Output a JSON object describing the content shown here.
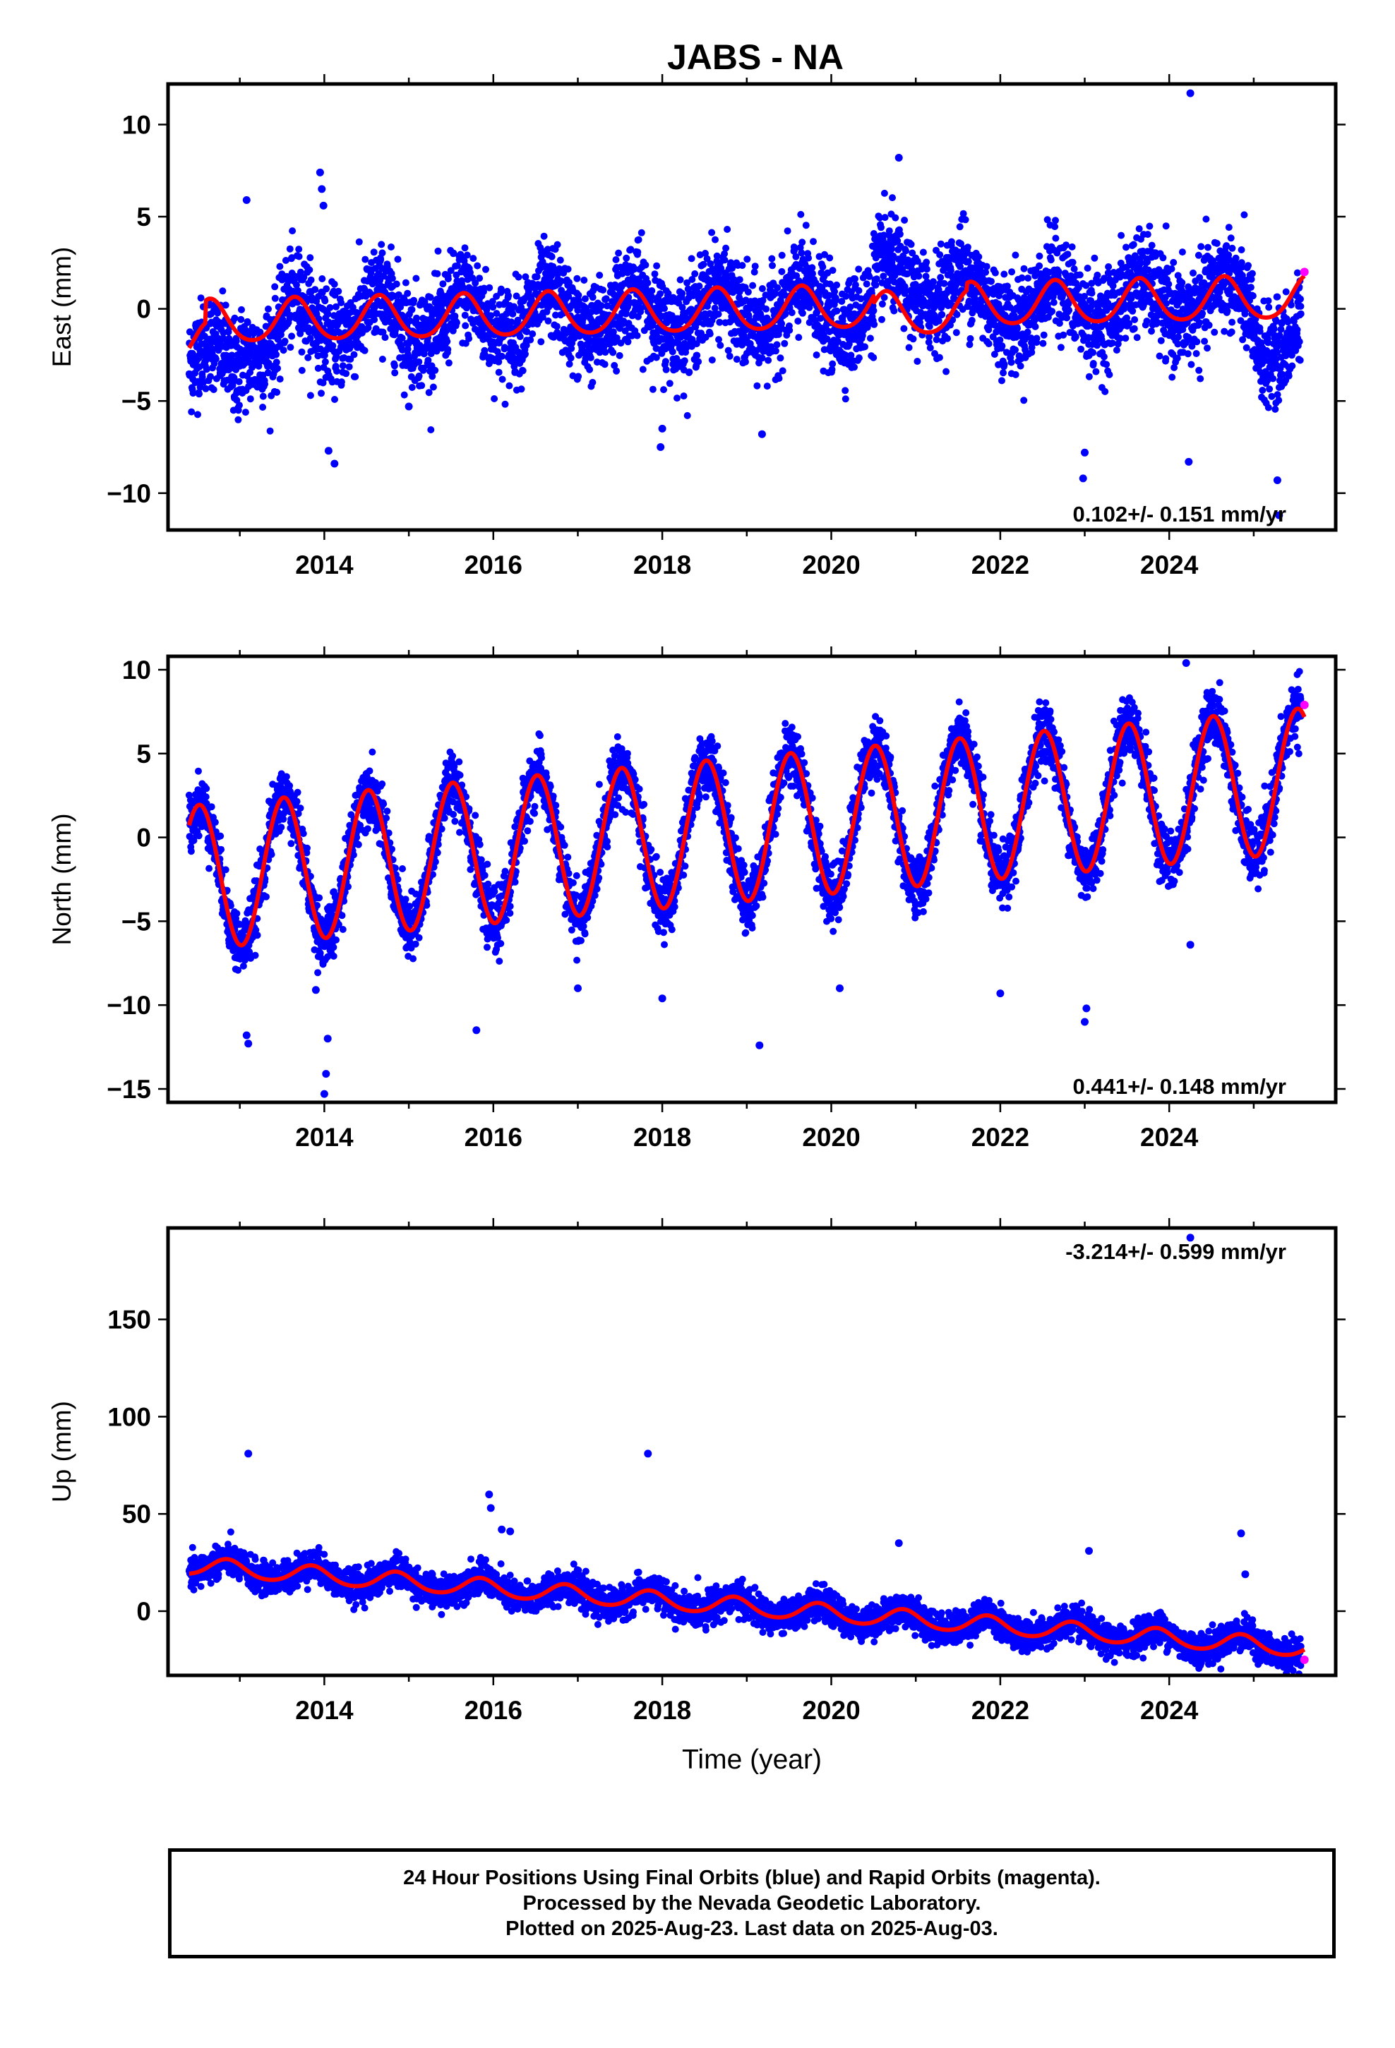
{
  "title": "JABS - NA",
  "footer": {
    "line1": "24 Hour Positions Using Final Orbits (blue) and Rapid Orbits (magenta).",
    "line2": "Processed by the Nevada Geodetic Laboratory.",
    "line3": "Plotted on 2025-Aug-23. Last data on 2025-Aug-03."
  },
  "colors": {
    "final_orbits": "#0000ff",
    "rapid_orbits": "#ff00ff",
    "model_fit": "#ff0000",
    "frame": "#000000"
  },
  "chart_data": [
    {
      "type": "scatter",
      "component": "east",
      "ylabel": "East (mm)",
      "xlabel": "",
      "xlim": [
        2012.15,
        2025.97
      ],
      "ylim": [
        -12.0,
        12.2
      ],
      "xticks": [
        2014,
        2016,
        2018,
        2020,
        2022,
        2024
      ],
      "yticks": [
        -10,
        -5,
        0,
        5,
        10
      ],
      "ytick_labels": [
        "−10",
        "−5",
        "0",
        "5",
        "10"
      ],
      "rate_text": "0.102+/- 0.151 mm/yr",
      "rate_position": "bottom-right",
      "series": [
        {
          "name": "Final Orbits",
          "kind": "daily-points",
          "color": "#0000ff",
          "x_range": [
            2012.4,
            2025.56
          ],
          "scatter_sd": 1.3,
          "model": {
            "ref_year": 2019.0,
            "offset": -0.1,
            "rate": 0.102,
            "annual_amp": 1.15,
            "annual_peak": 2019.65,
            "semiannual_amp": 0.15
          },
          "segment_offsets": [
            {
              "from": 2012.4,
              "to": 2013.0,
              "offset": -2.2
            },
            {
              "from": 2013.0,
              "to": 2013.5,
              "offset": -1.0
            },
            {
              "from": 2020.5,
              "to": 2021.6,
              "offset": 1.2
            },
            {
              "from": 2025.0,
              "to": 2025.56,
              "offset": -2.2
            }
          ],
          "outliers": [
            {
              "x": 2013.08,
              "y": 5.9
            },
            {
              "x": 2013.95,
              "y": 7.4
            },
            {
              "x": 2013.97,
              "y": 6.5
            },
            {
              "x": 2013.99,
              "y": 5.6
            },
            {
              "x": 2014.05,
              "y": -7.7
            },
            {
              "x": 2014.12,
              "y": -8.4
            },
            {
              "x": 2015.0,
              "y": -5.3
            },
            {
              "x": 2017.98,
              "y": -7.5
            },
            {
              "x": 2018.0,
              "y": -6.5
            },
            {
              "x": 2019.18,
              "y": -6.8
            },
            {
              "x": 2020.8,
              "y": 8.2
            },
            {
              "x": 2022.98,
              "y": -9.2
            },
            {
              "x": 2023.0,
              "y": -7.8
            },
            {
              "x": 2024.25,
              "y": 11.7
            },
            {
              "x": 2024.23,
              "y": -8.3
            },
            {
              "x": 2025.3,
              "y": -11.2
            },
            {
              "x": 2025.28,
              "y": -9.3
            }
          ]
        },
        {
          "name": "Rapid Orbits",
          "kind": "points",
          "color": "#ff00ff",
          "points": [
            {
              "x": 2025.6,
              "y": 2.0
            }
          ]
        },
        {
          "name": "Model fit",
          "kind": "line",
          "color": "#ff0000",
          "x_range": [
            2012.4,
            2025.6
          ],
          "model": {
            "ref_year": 2019.0,
            "offset": -0.1,
            "rate": 0.102,
            "annual_amp": 1.15,
            "annual_peak": 2019.65,
            "semiannual_amp": 0.15
          },
          "segment_offsets": [
            {
              "from": 2012.4,
              "to": 2012.6,
              "offset": -1.2
            },
            {
              "from": 2020.5,
              "to": 2021.6,
              "offset": -0.4
            }
          ]
        }
      ]
    },
    {
      "type": "scatter",
      "component": "north",
      "ylabel": "North (mm)",
      "xlabel": "",
      "xlim": [
        2012.15,
        2025.97
      ],
      "ylim": [
        -15.8,
        10.8
      ],
      "xticks": [
        2014,
        2016,
        2018,
        2020,
        2022,
        2024
      ],
      "yticks": [
        -15,
        -10,
        -5,
        0,
        5,
        10
      ],
      "ytick_labels": [
        "−15",
        "−10",
        "−5",
        "0",
        "5",
        "10"
      ],
      "rate_text": "0.441+/- 0.148 mm/yr",
      "rate_position": "bottom-right",
      "series": [
        {
          "name": "Final Orbits",
          "kind": "daily-points",
          "color": "#0000ff",
          "x_range": [
            2012.4,
            2025.56
          ],
          "scatter_sd": 0.9,
          "model": {
            "ref_year": 2019.0,
            "offset": 0.5,
            "rate": 0.441,
            "annual_amp": 4.3,
            "annual_peak": 2019.52,
            "semiannual_amp": 0.0
          },
          "segment_offsets": [],
          "outliers": [
            {
              "x": 2013.1,
              "y": -12.3
            },
            {
              "x": 2013.08,
              "y": -11.8
            },
            {
              "x": 2013.9,
              "y": -9.1
            },
            {
              "x": 2014.0,
              "y": -15.3
            },
            {
              "x": 2014.02,
              "y": -14.1
            },
            {
              "x": 2014.04,
              "y": -12.0
            },
            {
              "x": 2015.8,
              "y": -11.5
            },
            {
              "x": 2017.0,
              "y": -9.0
            },
            {
              "x": 2018.0,
              "y": -9.6
            },
            {
              "x": 2019.15,
              "y": -12.4
            },
            {
              "x": 2020.1,
              "y": -9.0
            },
            {
              "x": 2022.0,
              "y": -9.3
            },
            {
              "x": 2023.0,
              "y": -11.0
            },
            {
              "x": 2023.02,
              "y": -10.2
            },
            {
              "x": 2024.2,
              "y": 10.4
            },
            {
              "x": 2024.25,
              "y": -6.4
            }
          ]
        },
        {
          "name": "Rapid Orbits",
          "kind": "points",
          "color": "#ff00ff",
          "points": [
            {
              "x": 2025.6,
              "y": 7.9
            }
          ]
        },
        {
          "name": "Model fit",
          "kind": "line",
          "color": "#ff0000",
          "x_range": [
            2012.4,
            2025.6
          ],
          "model": {
            "ref_year": 2019.0,
            "offset": 0.5,
            "rate": 0.441,
            "annual_amp": 4.3,
            "annual_peak": 2019.52,
            "semiannual_amp": 0.0
          },
          "segment_offsets": []
        }
      ]
    },
    {
      "type": "scatter",
      "component": "up",
      "ylabel": "Up (mm)",
      "xlabel": "Time (year)",
      "xlim": [
        2012.15,
        2025.97
      ],
      "ylim": [
        -33,
        197
      ],
      "xticks": [
        2014,
        2016,
        2018,
        2020,
        2022,
        2024
      ],
      "yticks": [
        0,
        50,
        100,
        150
      ],
      "ytick_labels": [
        "0",
        "50",
        "100",
        "150"
      ],
      "rate_text": "-3.214+/- 0.599 mm/yr",
      "rate_position": "top-right",
      "series": [
        {
          "name": "Final Orbits",
          "kind": "daily-points",
          "color": "#0000ff",
          "x_range": [
            2012.4,
            2025.56
          ],
          "scatter_sd": 4.0,
          "model": {
            "ref_year": 2019.0,
            "offset": 2.0,
            "rate": -3.214,
            "annual_amp": 4.5,
            "annual_peak": 2018.85,
            "semiannual_amp": 0.5
          },
          "segment_offsets": [],
          "outliers": [
            {
              "x": 2013.1,
              "y": 81
            },
            {
              "x": 2017.83,
              "y": 81
            },
            {
              "x": 2015.95,
              "y": 60
            },
            {
              "x": 2015.97,
              "y": 53
            },
            {
              "x": 2016.1,
              "y": 42
            },
            {
              "x": 2016.2,
              "y": 41
            },
            {
              "x": 2020.8,
              "y": 35
            },
            {
              "x": 2023.05,
              "y": 31
            },
            {
              "x": 2024.25,
              "y": 192
            },
            {
              "x": 2024.85,
              "y": 40
            },
            {
              "x": 2024.9,
              "y": 19
            }
          ]
        },
        {
          "name": "Rapid Orbits",
          "kind": "points",
          "color": "#ff00ff",
          "points": [
            {
              "x": 2025.6,
              "y": -25
            }
          ]
        },
        {
          "name": "Model fit",
          "kind": "line",
          "color": "#ff0000",
          "x_range": [
            2012.4,
            2025.6
          ],
          "model": {
            "ref_year": 2019.0,
            "offset": 2.0,
            "rate": -3.214,
            "annual_amp": 4.5,
            "annual_peak": 2018.85,
            "semiannual_amp": 0.5
          },
          "segment_offsets": []
        }
      ]
    }
  ]
}
